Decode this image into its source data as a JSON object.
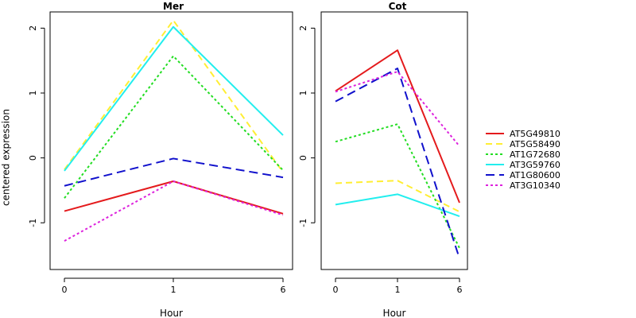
{
  "chart_data": {
    "type": "line",
    "ylabel": "centered expression",
    "legend_placement": "right",
    "series_styles": [
      {
        "name": "AT5G49810",
        "color": "#e41a1c",
        "dash": "solid"
      },
      {
        "name": "AT5G58490",
        "color": "#ffee33",
        "dash": "dashed"
      },
      {
        "name": "AT1G72680",
        "color": "#22dd22",
        "dash": "dotted"
      },
      {
        "name": "AT3G59760",
        "color": "#22eeee",
        "dash": "solid"
      },
      {
        "name": "AT1G80600",
        "color": "#1111cc",
        "dash": "longdash"
      },
      {
        "name": "AT3G10340",
        "color": "#dd22dd",
        "dash": "dotted"
      }
    ],
    "panels": [
      {
        "title": "Mer",
        "xlabel": "Hour",
        "categories": [
          "0",
          "1",
          "6"
        ],
        "ylim": [
          -1.72,
          2.25
        ],
        "yticks": [
          -1,
          0,
          1,
          2
        ],
        "series": [
          {
            "name": "AT5G49810",
            "values": [
              -0.82,
              -0.36,
              -0.86
            ]
          },
          {
            "name": "AT5G58490",
            "values": [
              -0.18,
              2.12,
              -0.22
            ]
          },
          {
            "name": "AT1G72680",
            "values": [
              -0.62,
              1.57,
              -0.19
            ]
          },
          {
            "name": "AT3G59760",
            "values": [
              -0.2,
              2.02,
              0.35
            ]
          },
          {
            "name": "AT1G80600",
            "values": [
              -0.43,
              -0.01,
              -0.3
            ]
          },
          {
            "name": "AT3G10340",
            "values": [
              -1.28,
              -0.36,
              -0.88
            ]
          }
        ]
      },
      {
        "title": "Cot",
        "xlabel": "Hour",
        "categories": [
          "0",
          "1",
          "6"
        ],
        "ylim": [
          -1.72,
          2.25
        ],
        "yticks": [
          -1,
          0,
          1,
          2
        ],
        "series": [
          {
            "name": "AT5G49810",
            "values": [
              1.03,
              1.66,
              -0.69
            ]
          },
          {
            "name": "AT5G58490",
            "values": [
              -0.39,
              -0.35,
              -0.83
            ]
          },
          {
            "name": "AT1G72680",
            "values": [
              0.25,
              0.52,
              -1.39
            ]
          },
          {
            "name": "AT3G59760",
            "values": [
              -0.72,
              -0.56,
              -0.9
            ]
          },
          {
            "name": "AT1G80600",
            "values": [
              0.87,
              1.38,
              -1.55
            ]
          },
          {
            "name": "AT3G10340",
            "values": [
              1.02,
              1.33,
              0.18
            ]
          }
        ]
      }
    ],
    "legend": [
      "AT5G49810",
      "AT5G58490",
      "AT1G72680",
      "AT3G59760",
      "AT1G80600",
      "AT3G10340"
    ]
  }
}
